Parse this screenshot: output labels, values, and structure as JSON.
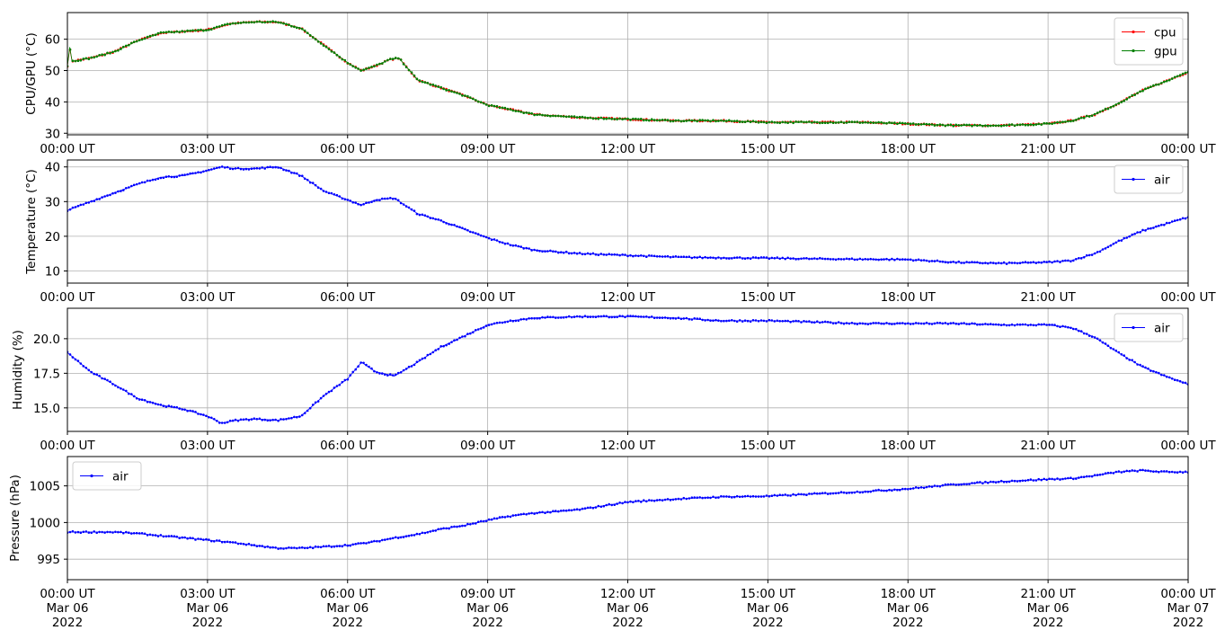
{
  "chart_data": [
    {
      "type": "line",
      "ylabel": "CPU/GPU (°C)",
      "xlabel": "",
      "xlim": [
        0,
        24
      ],
      "ylim": [
        29.5,
        68.5
      ],
      "yticks": [
        30,
        40,
        50,
        60
      ],
      "x_tick_labels": [
        "00:00 UT",
        "03:00 UT",
        "06:00 UT",
        "09:00 UT",
        "12:00 UT",
        "15:00 UT",
        "18:00 UT",
        "21:00 UT",
        "00:00 UT"
      ],
      "grid": true,
      "legend": "top-right",
      "series": [
        {
          "name": "cpu",
          "color": "#ff0000",
          "x": [
            0,
            0.05,
            0.1,
            0.5,
            1,
            1.5,
            2,
            2.5,
            3,
            3.5,
            4,
            4.5,
            5,
            5.5,
            6,
            6.3,
            6.6,
            6.9,
            7.1,
            7.5,
            8,
            8.5,
            9,
            9.5,
            10,
            11,
            12,
            13,
            14,
            15,
            16,
            17,
            18,
            19,
            20,
            21,
            21.5,
            22,
            22.5,
            23,
            23.5,
            24
          ],
          "y": [
            51.5,
            57,
            53,
            54,
            56,
            59.5,
            62,
            62.5,
            63,
            65,
            65.5,
            65.5,
            63.5,
            58,
            52.5,
            50,
            51.5,
            53.5,
            54,
            47,
            44.5,
            42,
            39,
            37.5,
            36,
            35,
            34.5,
            34,
            34,
            33.5,
            33.5,
            33.5,
            33,
            32.5,
            32.5,
            33,
            34,
            36,
            39.5,
            43.5,
            46.5,
            49.5
          ]
        },
        {
          "name": "gpu",
          "color": "#008000",
          "x": [
            0,
            0.05,
            0.1,
            0.5,
            1,
            1.5,
            2,
            2.5,
            3,
            3.5,
            4,
            4.5,
            5,
            5.5,
            6,
            6.3,
            6.6,
            6.9,
            7.1,
            7.5,
            8,
            8.5,
            9,
            9.5,
            10,
            11,
            12,
            13,
            14,
            15,
            16,
            17,
            18,
            19,
            20,
            21,
            21.5,
            22,
            22.5,
            23,
            23.5,
            24
          ],
          "y": [
            51.5,
            57.5,
            53,
            54,
            56,
            59.5,
            62,
            62.5,
            63,
            65,
            65.5,
            65.5,
            63.5,
            58,
            52.5,
            50,
            51.5,
            53.5,
            54,
            47,
            44.5,
            42,
            39,
            37.5,
            36,
            35,
            34.5,
            34,
            34,
            33.5,
            33.5,
            33.5,
            33,
            32.5,
            32.5,
            33,
            34,
            36,
            39.5,
            43.5,
            46.5,
            49.5
          ]
        }
      ]
    },
    {
      "type": "line",
      "ylabel": "Temperature (°C)",
      "xlabel": "",
      "xlim": [
        0,
        24
      ],
      "ylim": [
        6.5,
        42
      ],
      "yticks": [
        10,
        20,
        30,
        40
      ],
      "x_tick_labels": [
        "00:00 UT",
        "03:00 UT",
        "06:00 UT",
        "09:00 UT",
        "12:00 UT",
        "15:00 UT",
        "18:00 UT",
        "21:00 UT",
        "00:00 UT"
      ],
      "grid": true,
      "legend": "top-right",
      "series": [
        {
          "name": "air",
          "color": "#0000ff",
          "x": [
            0,
            0.5,
            1,
            1.5,
            2,
            2.5,
            3,
            3.3,
            3.6,
            4,
            4.5,
            5,
            5.5,
            6,
            6.3,
            6.6,
            7,
            7.5,
            8,
            8.5,
            9,
            9.5,
            10,
            11,
            12,
            13,
            14,
            15,
            16,
            17,
            18,
            19,
            20,
            21,
            21.5,
            22,
            22.5,
            23,
            23.5,
            24
          ],
          "y": [
            27.5,
            30,
            32.5,
            35,
            37,
            37.5,
            39,
            40,
            39.5,
            39.5,
            40,
            37.5,
            33,
            30.5,
            29,
            30.5,
            31,
            26.5,
            24.5,
            22,
            19.5,
            17.5,
            16,
            15,
            14.5,
            14,
            13.8,
            13.7,
            13.5,
            13.4,
            13.3,
            12.5,
            12.2,
            12.5,
            13,
            15,
            18.5,
            21.5,
            23.5,
            25.5
          ]
        }
      ]
    },
    {
      "type": "line",
      "ylabel": "Humidity (%)",
      "xlabel": "",
      "xlim": [
        0,
        24
      ],
      "ylim": [
        13.3,
        22.2
      ],
      "yticks": [
        15.0,
        17.5,
        20.0
      ],
      "ytick_labels": [
        "15.0",
        "17.5",
        "20.0"
      ],
      "x_tick_labels": [
        "00:00 UT",
        "03:00 UT",
        "06:00 UT",
        "09:00 UT",
        "12:00 UT",
        "15:00 UT",
        "18:00 UT",
        "21:00 UT",
        "00:00 UT"
      ],
      "grid": true,
      "legend": "top-right",
      "series": [
        {
          "name": "air",
          "color": "#0000ff",
          "x": [
            0,
            0.5,
            1,
            1.5,
            2,
            2.5,
            3,
            3.3,
            3.6,
            4,
            4.5,
            5,
            5.5,
            6,
            6.3,
            6.6,
            7,
            7.5,
            8,
            8.5,
            9,
            9.5,
            10,
            11,
            12,
            13,
            14,
            15,
            16,
            17,
            18,
            19,
            20,
            21,
            21.5,
            22,
            22.5,
            23,
            23.5,
            24
          ],
          "y": [
            19,
            17.6,
            16.7,
            15.7,
            15.2,
            14.9,
            14.4,
            13.9,
            14.1,
            14.2,
            14.1,
            14.4,
            15.9,
            17.1,
            18.3,
            17.6,
            17.3,
            18.3,
            19.4,
            20.2,
            21,
            21.3,
            21.5,
            21.6,
            21.6,
            21.5,
            21.3,
            21.3,
            21.2,
            21.1,
            21.1,
            21.1,
            21,
            21,
            20.8,
            20.1,
            19,
            18,
            17.3,
            16.7
          ]
        }
      ]
    },
    {
      "type": "line",
      "ylabel": "Pressure (hPa)",
      "xlabel": "",
      "xlim": [
        0,
        24
      ],
      "ylim": [
        992.2,
        1009
      ],
      "yticks": [
        995,
        1000,
        1005
      ],
      "x_tick_labels": [
        "00:00 UT\nMar 06\n2022",
        "03:00 UT\nMar 06\n2022",
        "06:00 UT\nMar 06\n2022",
        "09:00 UT\nMar 06\n2022",
        "12:00 UT\nMar 06\n2022",
        "15:00 UT\nMar 06\n2022",
        "18:00 UT\nMar 06\n2022",
        "21:00 UT\nMar 06\n2022",
        "00:00 UT\nMar 07\n2022"
      ],
      "grid": true,
      "legend": "top-left",
      "series": [
        {
          "name": "air",
          "color": "#0000ff",
          "x": [
            0,
            0.5,
            1,
            1.5,
            2,
            2.5,
            3,
            3.5,
            4,
            4.5,
            5,
            5.5,
            6,
            6.5,
            7,
            7.5,
            8,
            8.5,
            9,
            9.5,
            10,
            10.5,
            11,
            12,
            13,
            14,
            15,
            16,
            17,
            18,
            19,
            20,
            21,
            21.5,
            22,
            22.5,
            23,
            23.5,
            24
          ],
          "y": [
            998.7,
            998.7,
            998.7,
            998.5,
            998.2,
            997.9,
            997.6,
            997.3,
            996.9,
            996.5,
            996.5,
            996.7,
            996.9,
            997.3,
            997.9,
            998.4,
            999.1,
            999.6,
            1000.3,
            1000.9,
            1001.3,
            1001.5,
            1001.8,
            1002.8,
            1003.2,
            1003.5,
            1003.6,
            1003.9,
            1004.2,
            1004.6,
            1005.2,
            1005.6,
            1005.9,
            1006,
            1006.4,
            1006.9,
            1007.1,
            1006.9,
            1006.9
          ]
        }
      ]
    }
  ]
}
